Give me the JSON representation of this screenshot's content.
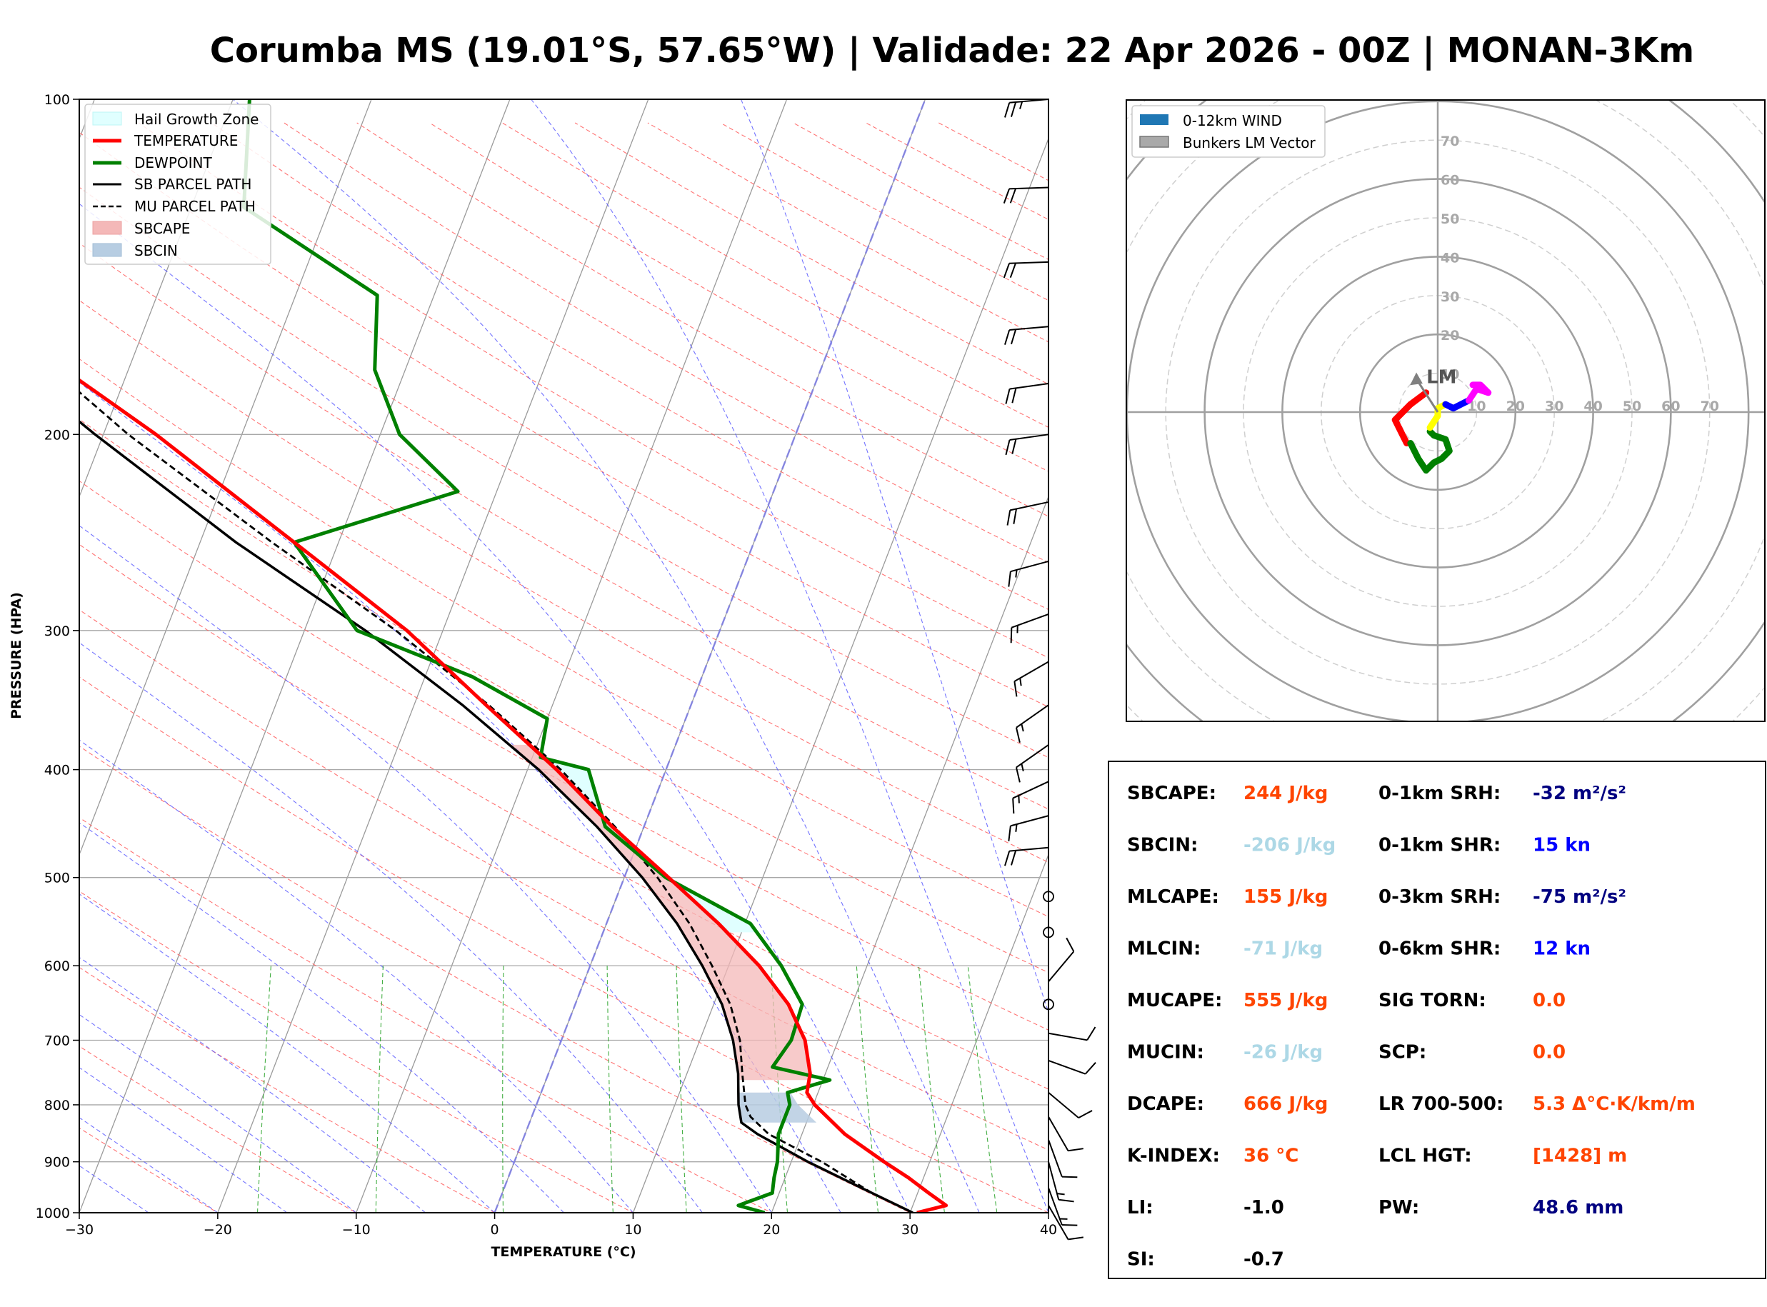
{
  "title": "Corumba MS (19.01°S, 57.65°W) | Validade: 22 Apr 2026 - 00Z | MONAN-3Km",
  "colors": {
    "temperature": "#ff0000",
    "dewpoint": "#008000",
    "sb_parcel": "#000000",
    "mu_parcel": "#000000",
    "sbcape": "#f4b8b8",
    "sbcin": "#b7cde2",
    "hail": "#e0ffff",
    "dry_adiabat": "#ff5a5a",
    "moist_adiabat": "#5a5aff",
    "mixing_ratio": "#22a022",
    "orange": "#ff4500",
    "lightblue": "#add8e6",
    "navy": "#000080",
    "blue": "#0000ff"
  },
  "chart_data": [
    {
      "type": "line",
      "name": "skew-t",
      "xlabel": "TEMPERATURE (°C)",
      "ylabel": "PRESSURE (HPA)",
      "xlim": [
        -30,
        40
      ],
      "ylim": [
        1000,
        100
      ],
      "x_ticks": [
        "−30",
        "−20",
        "−10",
        "0",
        "10",
        "20",
        "30",
        "40"
      ],
      "y_ticks": [
        "100",
        "200",
        "300",
        "400",
        "500",
        "600",
        "700",
        "800",
        "900",
        "1000"
      ],
      "log_pressure": true,
      "grid": true,
      "legend_position": "top-left",
      "legend": [
        "Hail Growth Zone",
        "TEMPERATURE",
        "DEWPOINT",
        "SB PARCEL PATH",
        "MU PARCEL PATH",
        "SBCAPE",
        "SBCIN"
      ],
      "series": [
        {
          "name": "TEMPERATURE",
          "points": [
            [
              1000,
              30.5
            ],
            [
              985,
              32.4
            ],
            [
              960,
              30.8
            ],
            [
              930,
              28.9
            ],
            [
              900,
              26.7
            ],
            [
              850,
              23.1
            ],
            [
              800,
              20.1
            ],
            [
              780,
              19.2
            ],
            [
              750,
              18.9
            ],
            [
              700,
              17.6
            ],
            [
              650,
              15.4
            ],
            [
              600,
              12.2
            ],
            [
              550,
              8.1
            ],
            [
              500,
              3.2
            ],
            [
              450,
              -2.3
            ],
            [
              400,
              -7.9
            ],
            [
              350,
              -14.8
            ],
            [
              300,
              -22.6
            ],
            [
              250,
              -33.2
            ],
            [
              200,
              -46.2
            ],
            [
              175,
              -54.6
            ],
            [
              150,
              -64.6
            ],
            [
              125,
              -73.8
            ],
            [
              100,
              -80.6
            ]
          ]
        },
        {
          "name": "DEWPOINT",
          "points": [
            [
              1000,
              19.5
            ],
            [
              985,
              17.4
            ],
            [
              960,
              19.5
            ],
            [
              930,
              19.2
            ],
            [
              900,
              19.0
            ],
            [
              850,
              18.3
            ],
            [
              800,
              18.3
            ],
            [
              780,
              17.8
            ],
            [
              760,
              20.5
            ],
            [
              740,
              16.0
            ],
            [
              700,
              16.6
            ],
            [
              650,
              16.4
            ],
            [
              600,
              13.8
            ],
            [
              550,
              10.4
            ],
            [
              500,
              3.0
            ],
            [
              450,
              -2.8
            ],
            [
              400,
              -5.6
            ],
            [
              390,
              -9.4
            ],
            [
              360,
              -10.0
            ],
            [
              330,
              -16.6
            ],
            [
              300,
              -26.2
            ],
            [
              250,
              -33.2
            ],
            [
              225,
              -22.8
            ],
            [
              200,
              -28.6
            ],
            [
              175,
              -32.2
            ],
            [
              150,
              -34.1
            ],
            [
              125,
              -46.2
            ],
            [
              100,
              -48.8
            ]
          ]
        },
        {
          "name": "SB PARCEL PATH",
          "points": [
            [
              1000,
              30.2
            ],
            [
              950,
              25.8
            ],
            [
              900,
              21.2
            ],
            [
              850,
              16.8
            ],
            [
              830,
              15.3
            ],
            [
              800,
              14.6
            ],
            [
              750,
              13.7
            ],
            [
              700,
              12.4
            ],
            [
              650,
              10.6
            ],
            [
              600,
              8.1
            ],
            [
              550,
              5.1
            ],
            [
              500,
              1.3
            ],
            [
              450,
              -3.4
            ],
            [
              400,
              -9.2
            ],
            [
              350,
              -16.5
            ],
            [
              300,
              -25.6
            ],
            [
              250,
              -37.4
            ],
            [
              200,
              -50.6
            ],
            [
              175,
              -58.1
            ],
            [
              150,
              -66.3
            ],
            [
              125,
              -75.4
            ],
            [
              100,
              -85.8
            ]
          ]
        },
        {
          "name": "MU PARCEL PATH",
          "points": [
            [
              960,
              26.7
            ],
            [
              900,
              22.2
            ],
            [
              850,
              17.6
            ],
            [
              820,
              15.8
            ],
            [
              800,
              15.1
            ],
            [
              750,
              14.0
            ],
            [
              700,
              12.9
            ],
            [
              650,
              11.2
            ],
            [
              600,
              8.8
            ],
            [
              550,
              6.0
            ],
            [
              500,
              2.4
            ],
            [
              450,
              -2.1
            ],
            [
              400,
              -7.6
            ],
            [
              350,
              -14.6
            ],
            [
              300,
              -23.4
            ],
            [
              250,
              -34.8
            ],
            [
              200,
              -48.2
            ],
            [
              175,
              -55.4
            ],
            [
              150,
              -63.4
            ],
            [
              125,
              -72.6
            ],
            [
              100,
              -83.4
            ]
          ]
        }
      ],
      "hail_growth_zone_hpa": [
        390,
        360
      ],
      "wind_barbs": [
        {
          "p": 100,
          "dir": 265,
          "spd": 25
        },
        {
          "p": 120,
          "dir": 268,
          "spd": 20
        },
        {
          "p": 140,
          "dir": 268,
          "spd": 20
        },
        {
          "p": 160,
          "dir": 265,
          "spd": 20
        },
        {
          "p": 180,
          "dir": 262,
          "spd": 20
        },
        {
          "p": 200,
          "dir": 262,
          "spd": 20
        },
        {
          "p": 230,
          "dir": 258,
          "spd": 20
        },
        {
          "p": 260,
          "dir": 255,
          "spd": 15
        },
        {
          "p": 290,
          "dir": 250,
          "spd": 15
        },
        {
          "p": 320,
          "dir": 240,
          "spd": 15
        },
        {
          "p": 350,
          "dir": 235,
          "spd": 15
        },
        {
          "p": 380,
          "dir": 235,
          "spd": 15
        },
        {
          "p": 410,
          "dir": 245,
          "spd": 15
        },
        {
          "p": 440,
          "dir": 255,
          "spd": 15
        },
        {
          "p": 470,
          "dir": 265,
          "spd": 20
        },
        {
          "p": 520,
          "dir": 0,
          "spd": 0
        },
        {
          "p": 560,
          "dir": 0,
          "spd": 0
        },
        {
          "p": 620,
          "dir": 40,
          "spd": 10
        },
        {
          "p": 650,
          "dir": 0,
          "spd": 0
        },
        {
          "p": 690,
          "dir": 100,
          "spd": 10
        },
        {
          "p": 730,
          "dir": 110,
          "spd": 10
        },
        {
          "p": 780,
          "dir": 130,
          "spd": 10
        },
        {
          "p": 820,
          "dir": 150,
          "spd": 10
        },
        {
          "p": 860,
          "dir": 160,
          "spd": 10
        },
        {
          "p": 900,
          "dir": 165,
          "spd": 15
        },
        {
          "p": 950,
          "dir": 160,
          "spd": 15
        },
        {
          "p": 985,
          "dir": 150,
          "spd": 10
        }
      ]
    },
    {
      "type": "line",
      "name": "hodograph",
      "ring_labels_y": [
        "10",
        "20",
        "30",
        "40",
        "50",
        "60",
        "70"
      ],
      "ring_labels_x": [
        "10",
        "20",
        "30",
        "40",
        "50",
        "60",
        "70"
      ],
      "xlim": [
        -80,
        80
      ],
      "ylim": [
        -80,
        80
      ],
      "legend_position": "top-left",
      "legend": [
        "0-12km WIND",
        "Bunkers LM Vector"
      ],
      "lm_label": "LM",
      "lm_vector": [
        -5.5,
        10
      ],
      "segments": [
        {
          "color": "#ff0000",
          "points": [
            [
              -7,
              2
            ],
            [
              -11,
              -2
            ],
            [
              -9,
              -6
            ],
            [
              -8,
              -8
            ]
          ]
        },
        {
          "color": "#ff0000",
          "points": [
            [
              -7,
              2
            ],
            [
              -3,
              5
            ]
          ]
        },
        {
          "color": "#008000",
          "points": [
            [
              -7,
              -8
            ],
            [
              -5,
              -12
            ],
            [
              -3,
              -15
            ],
            [
              -1,
              -13
            ],
            [
              1,
              -12
            ],
            [
              3,
              -10
            ],
            [
              2,
              -7
            ],
            [
              -1,
              -6
            ],
            [
              -2,
              -5
            ]
          ]
        },
        {
          "color": "#ffff00",
          "points": [
            [
              -2,
              -4
            ],
            [
              0,
              -1
            ],
            [
              0,
              1
            ],
            [
              2,
              2
            ]
          ]
        },
        {
          "color": "#0000ff",
          "points": [
            [
              2,
              2
            ],
            [
              4,
              1
            ],
            [
              6,
              2
            ],
            [
              8,
              3
            ]
          ]
        },
        {
          "color": "#ff00ff",
          "points": [
            [
              8,
              3
            ],
            [
              10,
              6
            ],
            [
              13,
              5
            ],
            [
              11,
              7
            ],
            [
              9,
              7
            ]
          ]
        }
      ]
    }
  ],
  "indices": {
    "left": [
      {
        "label": "SBCAPE:",
        "value": "244 J/kg",
        "color": "orange"
      },
      {
        "label": "SBCIN:",
        "value": "-206 J/kg",
        "color": "lightblue"
      },
      {
        "label": "MLCAPE:",
        "value": "155 J/kg",
        "color": "orange"
      },
      {
        "label": "MLCIN:",
        "value": "-71 J/kg",
        "color": "lightblue"
      },
      {
        "label": "MUCAPE:",
        "value": "555 J/kg",
        "color": "orange"
      },
      {
        "label": "MUCIN:",
        "value": "-26 J/kg",
        "color": "lightblue"
      },
      {
        "label": "DCAPE:",
        "value": "666 J/kg",
        "color": "orange"
      },
      {
        "label": "K-INDEX:",
        "value": "36 °C",
        "color": "orange"
      },
      {
        "label": "LI:",
        "value": "-1.0",
        "color": "black"
      },
      {
        "label": "SI:",
        "value": "-0.7",
        "color": "black"
      }
    ],
    "right": [
      {
        "label": "0-1km SRH:",
        "value": "-32 m²/s²",
        "color": "navy"
      },
      {
        "label": "0-1km SHR:",
        "value": "15 kn",
        "color": "blue"
      },
      {
        "label": "0-3km SRH:",
        "value": "-75 m²/s²",
        "color": "navy"
      },
      {
        "label": "0-6km SHR:",
        "value": "12 kn",
        "color": "blue"
      },
      {
        "label": "SIG TORN:",
        "value": "0.0",
        "color": "orange"
      },
      {
        "label": "SCP:",
        "value": "0.0",
        "color": "orange"
      },
      {
        "label": "LR 700-500:",
        "value": "5.3 Δ°C·K/km/m",
        "color": "orange"
      },
      {
        "label": "LCL HGT:",
        "value": "[1428] m",
        "color": "orange"
      },
      {
        "label": "PW:",
        "value": "48.6 mm",
        "color": "navy"
      }
    ]
  }
}
